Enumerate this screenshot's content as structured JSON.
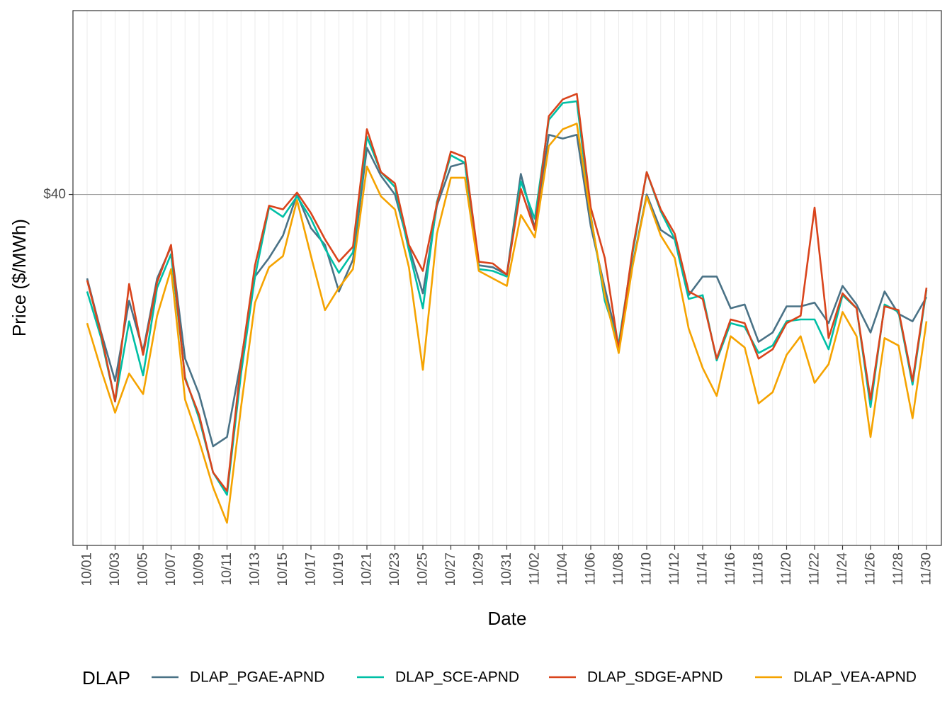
{
  "chart_data": {
    "type": "line",
    "xlabel": "Date",
    "ylabel": "Price ($/MWh)",
    "ytick_labels": [
      "$40"
    ],
    "yticks": [
      40
    ],
    "ylim": [
      22.4,
      48.3
    ],
    "grid": true,
    "legend": {
      "title": "DLAP",
      "placement": "bottom"
    },
    "x": [
      "10/01",
      "10/02",
      "10/03",
      "10/04",
      "10/05",
      "10/06",
      "10/07",
      "10/08",
      "10/09",
      "10/10",
      "10/11",
      "10/12",
      "10/13",
      "10/14",
      "10/15",
      "10/16",
      "10/17",
      "10/18",
      "10/19",
      "10/20",
      "10/21",
      "10/22",
      "10/23",
      "10/24",
      "10/25",
      "10/26",
      "10/27",
      "10/28",
      "10/29",
      "10/30",
      "10/31",
      "11/01",
      "11/02",
      "11/03",
      "11/04",
      "11/05",
      "11/06",
      "11/07",
      "11/08",
      "11/09",
      "11/10",
      "11/11",
      "11/12",
      "11/13",
      "11/14",
      "11/15",
      "11/16",
      "11/17",
      "11/18",
      "11/19",
      "11/20",
      "11/21",
      "11/22",
      "11/23",
      "11/24",
      "11/25",
      "11/26",
      "11/27",
      "11/28",
      "11/29",
      "11/30"
    ],
    "xtick_labels": [
      "10/01",
      "10/03",
      "10/05",
      "10/07",
      "10/09",
      "10/11",
      "10/13",
      "10/15",
      "10/17",
      "10/19",
      "10/21",
      "10/23",
      "10/25",
      "10/27",
      "10/29",
      "10/31",
      "11/02",
      "11/04",
      "11/06",
      "11/08",
      "11/10",
      "11/12",
      "11/14",
      "11/16",
      "11/18",
      "11/20",
      "11/22",
      "11/24",
      "11/26",
      "11/28",
      "11/30"
    ],
    "series": [
      {
        "name": "DLAP_PGAE-APND",
        "color": "#4a7286",
        "values": [
          35.5,
          32.6,
          30.0,
          34.3,
          31.6,
          35.5,
          37.2,
          31.2,
          29.3,
          26.5,
          27.0,
          31.1,
          35.6,
          36.6,
          37.8,
          40.0,
          38.2,
          37.3,
          34.8,
          36.5,
          42.5,
          41.0,
          40.0,
          37.2,
          34.7,
          39.4,
          41.5,
          41.7,
          36.2,
          36.1,
          35.7,
          41.1,
          38.2,
          43.2,
          43.0,
          43.2,
          38.3,
          35.0,
          31.9,
          36.3,
          40.0,
          38.1,
          37.6,
          34.6,
          35.6,
          35.6,
          33.9,
          34.1,
          32.1,
          32.6,
          34.0,
          34.0,
          34.2,
          33.1,
          35.1,
          34.1,
          32.6,
          34.8,
          33.6,
          33.2,
          34.5
        ]
      },
      {
        "name": "DLAP_SCE-APND",
        "color": "#00bfa5",
        "values": [
          34.8,
          32.3,
          28.9,
          33.2,
          30.3,
          35.0,
          36.8,
          30.2,
          28.0,
          25.1,
          23.9,
          30.4,
          35.6,
          39.3,
          38.8,
          39.9,
          38.7,
          37.1,
          35.8,
          36.9,
          43.1,
          41.2,
          40.4,
          37.0,
          33.9,
          39.6,
          42.1,
          41.7,
          36.0,
          35.9,
          35.6,
          40.7,
          38.7,
          44.0,
          44.9,
          45.0,
          38.9,
          34.3,
          32.0,
          36.9,
          41.2,
          39.1,
          37.6,
          34.4,
          34.6,
          31.1,
          33.1,
          32.9,
          31.5,
          31.9,
          33.2,
          33.3,
          33.3,
          31.7,
          34.6,
          33.9,
          28.6,
          34.1,
          33.7,
          29.8,
          34.9
        ]
      },
      {
        "name": "DLAP_SDGE-APND",
        "color": "#d9441c",
        "values": [
          35.4,
          32.5,
          28.9,
          35.2,
          31.4,
          35.3,
          37.3,
          30.1,
          28.2,
          25.1,
          24.1,
          31.0,
          36.2,
          39.4,
          39.2,
          40.1,
          39.0,
          37.6,
          36.4,
          37.2,
          43.5,
          41.2,
          40.6,
          37.3,
          35.9,
          39.5,
          42.3,
          42.0,
          36.4,
          36.3,
          35.7,
          40.3,
          38.1,
          44.2,
          45.1,
          45.4,
          39.3,
          36.6,
          31.7,
          37.1,
          41.2,
          39.2,
          37.9,
          34.8,
          34.4,
          31.2,
          33.3,
          33.1,
          31.2,
          31.7,
          33.1,
          33.5,
          39.3,
          32.3,
          34.7,
          33.9,
          29.0,
          34.0,
          33.8,
          30.0,
          35.0
        ]
      },
      {
        "name": "DLAP_VEA-APND",
        "color": "#f5a300",
        "values": [
          33.1,
          30.6,
          28.3,
          30.4,
          29.3,
          33.5,
          36.0,
          29.0,
          26.8,
          24.3,
          22.4,
          28.6,
          34.2,
          36.1,
          36.7,
          39.7,
          36.7,
          33.8,
          35.0,
          36.0,
          41.5,
          39.9,
          39.2,
          36.1,
          30.6,
          37.9,
          40.9,
          40.9,
          35.9,
          35.5,
          35.1,
          38.9,
          37.7,
          42.6,
          43.5,
          43.8,
          38.8,
          34.6,
          31.5,
          36.2,
          39.9,
          37.8,
          36.6,
          32.8,
          30.7,
          29.2,
          32.4,
          31.8,
          28.8,
          29.4,
          31.4,
          32.4,
          29.9,
          30.9,
          33.7,
          32.4,
          27.0,
          32.3,
          31.9,
          28.0,
          33.2
        ]
      }
    ]
  }
}
